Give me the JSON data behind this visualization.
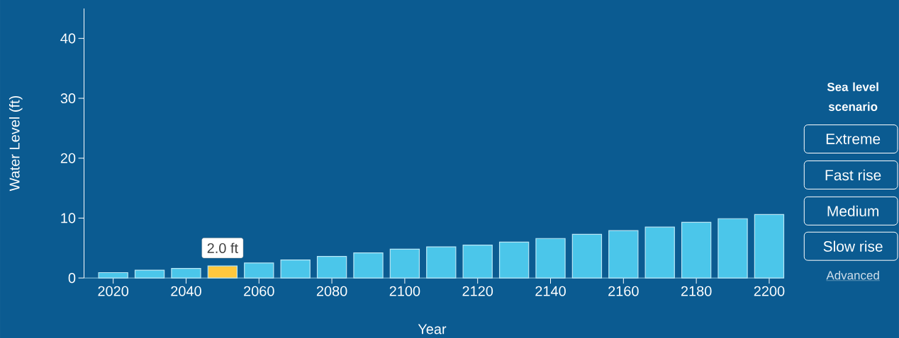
{
  "chart_data": {
    "type": "bar",
    "xlabel": "Year",
    "ylabel": "Water Level (ft)",
    "x": [
      2020,
      2030,
      2040,
      2050,
      2060,
      2070,
      2080,
      2090,
      2100,
      2110,
      2120,
      2130,
      2140,
      2150,
      2160,
      2170,
      2180,
      2190,
      2200
    ],
    "values": [
      0.9,
      1.3,
      1.6,
      2.0,
      2.5,
      3.0,
      3.6,
      4.2,
      4.8,
      5.2,
      5.5,
      6.0,
      6.6,
      7.3,
      7.9,
      8.5,
      9.3,
      9.9,
      10.6
    ],
    "colors": [
      "#4bc6ea",
      "#4bc6ea",
      "#4bc6ea",
      "#ffc83d",
      "#4bc6ea",
      "#4bc6ea",
      "#4bc6ea",
      "#4bc6ea",
      "#4bc6ea",
      "#4bc6ea",
      "#4bc6ea",
      "#4bc6ea",
      "#4bc6ea",
      "#4bc6ea",
      "#4bc6ea",
      "#4bc6ea",
      "#4bc6ea",
      "#4bc6ea",
      "#4bc6ea"
    ],
    "xlim": [
      2012,
      2203
    ],
    "xticks": [
      2020,
      2040,
      2060,
      2080,
      2100,
      2120,
      2140,
      2160,
      2180,
      2200
    ],
    "ylim": [
      0,
      45
    ],
    "yticks": [
      0,
      10,
      20,
      30,
      40
    ],
    "annotations": [
      {
        "text": "2.0 ft",
        "x": 2050,
        "y": 2.0
      },
      "Sea level scenario",
      "Extreme",
      "Fast rise",
      "Medium",
      "Slow rise",
      "Advanced"
    ]
  }
}
